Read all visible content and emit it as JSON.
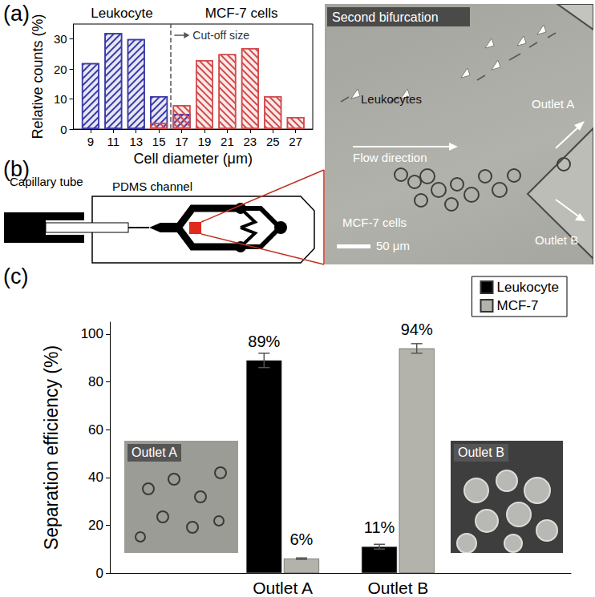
{
  "panel_labels": [
    "(a)",
    "(b)",
    "(c)"
  ],
  "chart_data": [
    {
      "type": "bar",
      "x_label": "Cell diameter (μm)",
      "y_label": "Relative counts (%)",
      "x": [
        9,
        11,
        13,
        15,
        17,
        19,
        21,
        23,
        25,
        27
      ],
      "series": [
        {
          "name": "Leukocyte",
          "color": "#3a3aa8",
          "values": [
            22,
            32,
            30,
            11,
            5,
            null,
            null,
            null,
            null,
            null
          ]
        },
        {
          "name": "MCF-7 cells",
          "color": "#d24a4a",
          "values": [
            null,
            null,
            null,
            2,
            8,
            23,
            25,
            27,
            11,
            4
          ]
        }
      ],
      "cutoff": {
        "label": "Cut-off size",
        "value": 16
      },
      "xlim": [
        7.5,
        28.5
      ],
      "xticks": [
        9,
        11,
        13,
        15,
        17,
        19,
        21,
        23,
        25,
        27
      ],
      "ylim": [
        0,
        35
      ],
      "yticks": [
        0,
        10,
        20,
        30
      ],
      "grid": false
    },
    {
      "type": "bar",
      "y_label": "Separation efficiency (%)",
      "categories": [
        null,
        "Outlet A",
        "Outlet B",
        null
      ],
      "series": [
        {
          "name": "Leukocyte",
          "color": "#000000",
          "values": [
            null,
            89,
            11,
            null
          ],
          "errors": [
            null,
            3,
            1,
            null
          ],
          "value_labels": [
            null,
            "89%",
            "11%",
            null
          ]
        },
        {
          "name": "MCF-7",
          "color": "#b3b3ab",
          "values": [
            null,
            6,
            94,
            null
          ],
          "errors": [
            null,
            0.3,
            2,
            null
          ],
          "value_labels": [
            null,
            "6%",
            "94%",
            null
          ]
        }
      ],
      "ylim": [
        0,
        105
      ],
      "yticks": [
        0,
        20,
        40,
        60,
        80,
        100
      ],
      "data_labels": true,
      "legend": "upper right",
      "grid": false
    }
  ],
  "diagram": {
    "capillary": "Capillary tube",
    "channel": "PDMS channel"
  },
  "micrograph": {
    "title": "Second bifurcation",
    "leukocytes": "Leukocytes",
    "flow": "Flow direction",
    "outlet_a": "Outlet A",
    "outlet_b": "Outlet B",
    "mcf7": "MCF-7 cells",
    "scale_bar": "50 μm"
  },
  "insets": [
    "Outlet A",
    "Outlet B"
  ]
}
